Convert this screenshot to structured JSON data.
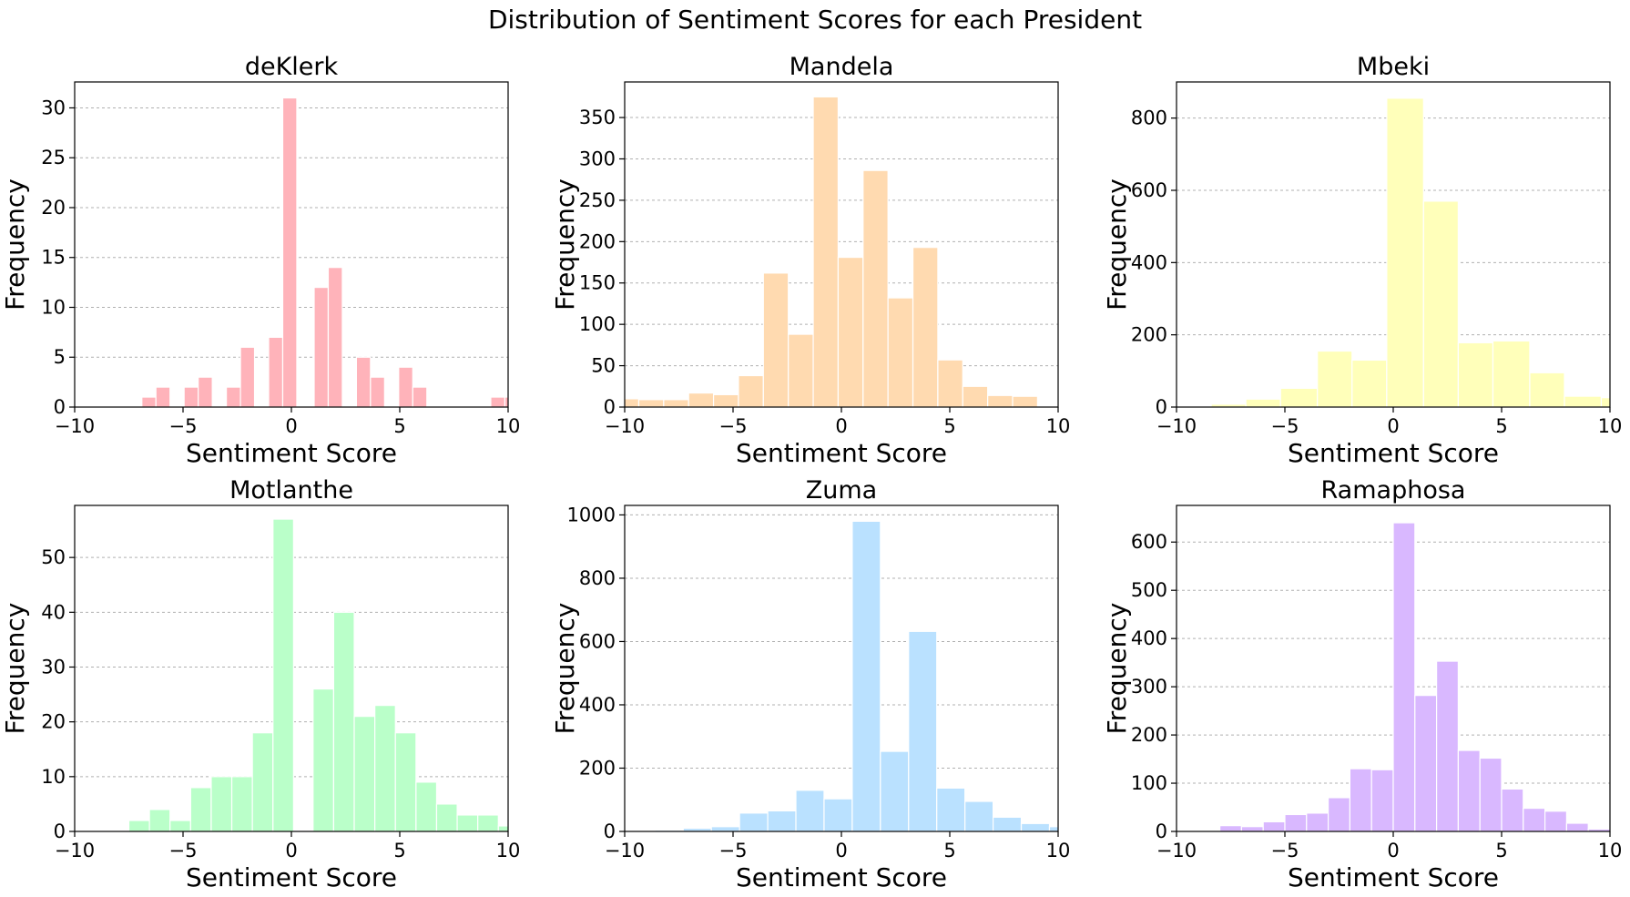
{
  "figure": {
    "title": "Distribution of Sentiment Scores for each President"
  },
  "chart_data": [
    {
      "type": "bar",
      "title": "deKlerk",
      "xlabel": "Sentiment Score",
      "ylabel": "Frequency",
      "color": "#ffb3ba",
      "xlim": [
        -10,
        10
      ],
      "ylim": [
        0,
        32.6
      ],
      "xticks": [
        "−10",
        "−5",
        "0",
        "5",
        "10"
      ],
      "yticks": [
        0,
        5,
        10,
        15,
        20,
        25,
        30
      ],
      "grid": "y",
      "bins": [
        {
          "x0": -6.9,
          "x1": -6.25,
          "v": 1
        },
        {
          "x0": -6.25,
          "x1": -5.6,
          "v": 2
        },
        {
          "x0": -4.95,
          "x1": -4.3,
          "v": 2
        },
        {
          "x0": -4.3,
          "x1": -3.65,
          "v": 3
        },
        {
          "x0": -3.0,
          "x1": -2.35,
          "v": 2
        },
        {
          "x0": -2.35,
          "x1": -1.7,
          "v": 6
        },
        {
          "x0": -1.05,
          "x1": -0.4,
          "v": 7
        },
        {
          "x0": -0.4,
          "x1": 0.25,
          "v": 31
        },
        {
          "x0": 1.05,
          "x1": 1.7,
          "v": 12
        },
        {
          "x0": 1.7,
          "x1": 2.35,
          "v": 14
        },
        {
          "x0": 3.0,
          "x1": 3.65,
          "v": 5
        },
        {
          "x0": 3.65,
          "x1": 4.3,
          "v": 3
        },
        {
          "x0": 4.95,
          "x1": 5.6,
          "v": 4
        },
        {
          "x0": 5.6,
          "x1": 6.25,
          "v": 2
        },
        {
          "x0": 9.2,
          "x1": 9.85,
          "v": 1
        },
        {
          "x0": 9.85,
          "x1": 10.5,
          "v": 1
        }
      ]
    },
    {
      "type": "bar",
      "title": "Mandela",
      "xlabel": "Sentiment Score",
      "ylabel": "Frequency",
      "color": "#ffdab0",
      "xlim": [
        -10,
        10
      ],
      "ylim": [
        0,
        393
      ],
      "xticks": [
        "−10",
        "−5",
        "0",
        "5",
        "10"
      ],
      "yticks": [
        0,
        50,
        100,
        150,
        200,
        250,
        300,
        350
      ],
      "grid": "y",
      "bins": [
        {
          "x0": -10.5,
          "x1": -9.35,
          "v": 10
        },
        {
          "x0": -9.35,
          "x1": -8.2,
          "v": 9
        },
        {
          "x0": -8.2,
          "x1": -7.05,
          "v": 9
        },
        {
          "x0": -7.05,
          "x1": -5.9,
          "v": 17
        },
        {
          "x0": -5.9,
          "x1": -4.75,
          "v": 15
        },
        {
          "x0": -4.75,
          "x1": -3.6,
          "v": 38
        },
        {
          "x0": -3.6,
          "x1": -2.45,
          "v": 162
        },
        {
          "x0": -2.45,
          "x1": -1.3,
          "v": 88
        },
        {
          "x0": -1.3,
          "x1": -0.15,
          "v": 375
        },
        {
          "x0": -0.15,
          "x1": 1.0,
          "v": 181
        },
        {
          "x0": 1.0,
          "x1": 2.15,
          "v": 286
        },
        {
          "x0": 2.15,
          "x1": 3.3,
          "v": 132
        },
        {
          "x0": 3.3,
          "x1": 4.45,
          "v": 193
        },
        {
          "x0": 4.45,
          "x1": 5.6,
          "v": 57
        },
        {
          "x0": 5.6,
          "x1": 6.75,
          "v": 25
        },
        {
          "x0": 6.75,
          "x1": 7.9,
          "v": 14
        },
        {
          "x0": 7.9,
          "x1": 9.05,
          "v": 13
        }
      ]
    },
    {
      "type": "bar",
      "title": "Mbeki",
      "xlabel": "Sentiment Score",
      "ylabel": "Frequency",
      "color": "#ffffba",
      "xlim": [
        -10,
        10
      ],
      "ylim": [
        0,
        900
      ],
      "xticks": [
        "−10",
        "−5",
        "0",
        "5",
        "10"
      ],
      "yticks": [
        0,
        200,
        400,
        600,
        800
      ],
      "grid": "y",
      "bins": [
        {
          "x0": -10.0,
          "x1": -8.4,
          "v": 2
        },
        {
          "x0": -8.4,
          "x1": -6.8,
          "v": 8
        },
        {
          "x0": -6.8,
          "x1": -5.2,
          "v": 22
        },
        {
          "x0": -5.2,
          "x1": -3.5,
          "v": 52
        },
        {
          "x0": -3.5,
          "x1": -1.9,
          "v": 155
        },
        {
          "x0": -1.9,
          "x1": -0.3,
          "v": 130
        },
        {
          "x0": -0.3,
          "x1": 1.4,
          "v": 855
        },
        {
          "x0": 1.4,
          "x1": 3.0,
          "v": 570
        },
        {
          "x0": 3.0,
          "x1": 4.6,
          "v": 178
        },
        {
          "x0": 4.6,
          "x1": 6.3,
          "v": 183
        },
        {
          "x0": 6.3,
          "x1": 7.9,
          "v": 95
        },
        {
          "x0": 7.9,
          "x1": 9.6,
          "v": 30
        },
        {
          "x0": 9.6,
          "x1": 11.2,
          "v": 26
        }
      ]
    },
    {
      "type": "bar",
      "title": "Motlanthe",
      "xlabel": "Sentiment Score",
      "ylabel": "Frequency",
      "color": "#baffc9",
      "xlim": [
        -10,
        10
      ],
      "ylim": [
        0,
        59.5
      ],
      "xticks": [
        "−10",
        "−5",
        "0",
        "5",
        "10"
      ],
      "yticks": [
        0,
        10,
        20,
        30,
        40,
        50
      ],
      "grid": "y",
      "bins": [
        {
          "x0": -7.5,
          "x1": -6.55,
          "v": 2
        },
        {
          "x0": -6.55,
          "x1": -5.6,
          "v": 4
        },
        {
          "x0": -5.6,
          "x1": -4.65,
          "v": 2
        },
        {
          "x0": -4.65,
          "x1": -3.7,
          "v": 8
        },
        {
          "x0": -3.7,
          "x1": -2.75,
          "v": 10
        },
        {
          "x0": -2.75,
          "x1": -1.8,
          "v": 10
        },
        {
          "x0": -1.8,
          "x1": -0.85,
          "v": 18
        },
        {
          "x0": -0.85,
          "x1": 0.1,
          "v": 57
        },
        {
          "x0": 1.0,
          "x1": 1.95,
          "v": 26
        },
        {
          "x0": 1.95,
          "x1": 2.9,
          "v": 40
        },
        {
          "x0": 2.9,
          "x1": 3.85,
          "v": 21
        },
        {
          "x0": 3.85,
          "x1": 4.8,
          "v": 23
        },
        {
          "x0": 4.8,
          "x1": 5.75,
          "v": 18
        },
        {
          "x0": 5.75,
          "x1": 6.7,
          "v": 9
        },
        {
          "x0": 6.7,
          "x1": 7.65,
          "v": 5
        },
        {
          "x0": 7.65,
          "x1": 8.6,
          "v": 3
        },
        {
          "x0": 8.6,
          "x1": 9.55,
          "v": 3
        },
        {
          "x0": 9.55,
          "x1": 10.5,
          "v": 1
        }
      ]
    },
    {
      "type": "bar",
      "title": "Zuma",
      "xlabel": "Sentiment Score",
      "ylabel": "Frequency",
      "color": "#bae1ff",
      "xlim": [
        -10,
        10
      ],
      "ylim": [
        0,
        1030
      ],
      "xticks": [
        "−10",
        "−5",
        "0",
        "5",
        "10"
      ],
      "yticks": [
        0,
        200,
        400,
        600,
        800,
        1000
      ],
      "grid": "y",
      "bins": [
        {
          "x0": -9.9,
          "x1": -8.6,
          "v": 2
        },
        {
          "x0": -8.6,
          "x1": -7.3,
          "v": 4
        },
        {
          "x0": -7.3,
          "x1": -6.0,
          "v": 10
        },
        {
          "x0": -6.0,
          "x1": -4.7,
          "v": 15
        },
        {
          "x0": -4.7,
          "x1": -3.4,
          "v": 58
        },
        {
          "x0": -3.4,
          "x1": -2.1,
          "v": 65
        },
        {
          "x0": -2.1,
          "x1": -0.8,
          "v": 130
        },
        {
          "x0": -0.8,
          "x1": 0.5,
          "v": 103
        },
        {
          "x0": 0.5,
          "x1": 1.8,
          "v": 980
        },
        {
          "x0": 1.8,
          "x1": 3.1,
          "v": 253
        },
        {
          "x0": 3.1,
          "x1": 4.4,
          "v": 632
        },
        {
          "x0": 4.4,
          "x1": 5.7,
          "v": 137
        },
        {
          "x0": 5.7,
          "x1": 7.0,
          "v": 95
        },
        {
          "x0": 7.0,
          "x1": 8.3,
          "v": 45
        },
        {
          "x0": 8.3,
          "x1": 9.6,
          "v": 25
        },
        {
          "x0": 9.6,
          "x1": 10.9,
          "v": 15
        }
      ]
    },
    {
      "type": "bar",
      "title": "Ramaphosa",
      "xlabel": "Sentiment Score",
      "ylabel": "Frequency",
      "color": "#d9b8ff",
      "xlim": [
        -10,
        10
      ],
      "ylim": [
        0,
        676
      ],
      "xticks": [
        "−10",
        "−5",
        "0",
        "5",
        "10"
      ],
      "yticks": [
        0,
        100,
        200,
        300,
        400,
        500,
        600
      ],
      "grid": "y",
      "bins": [
        {
          "x0": -9.0,
          "x1": -8.0,
          "v": 1
        },
        {
          "x0": -8.0,
          "x1": -7.0,
          "v": 12
        },
        {
          "x0": -7.0,
          "x1": -6.0,
          "v": 10
        },
        {
          "x0": -6.0,
          "x1": -5.0,
          "v": 20
        },
        {
          "x0": -5.0,
          "x1": -4.0,
          "v": 35
        },
        {
          "x0": -4.0,
          "x1": -3.0,
          "v": 38
        },
        {
          "x0": -3.0,
          "x1": -2.0,
          "v": 70
        },
        {
          "x0": -2.0,
          "x1": -1.0,
          "v": 130
        },
        {
          "x0": -1.0,
          "x1": 0.0,
          "v": 128
        },
        {
          "x0": 0.0,
          "x1": 1.0,
          "v": 640
        },
        {
          "x0": 1.0,
          "x1": 2.0,
          "v": 282
        },
        {
          "x0": 2.0,
          "x1": 3.0,
          "v": 353
        },
        {
          "x0": 3.0,
          "x1": 4.0,
          "v": 168
        },
        {
          "x0": 4.0,
          "x1": 5.0,
          "v": 152
        },
        {
          "x0": 5.0,
          "x1": 6.0,
          "v": 88
        },
        {
          "x0": 6.0,
          "x1": 7.0,
          "v": 48
        },
        {
          "x0": 7.0,
          "x1": 8.0,
          "v": 42
        },
        {
          "x0": 8.0,
          "x1": 9.0,
          "v": 17
        },
        {
          "x0": 9.0,
          "x1": 10.0,
          "v": 5
        }
      ]
    }
  ]
}
